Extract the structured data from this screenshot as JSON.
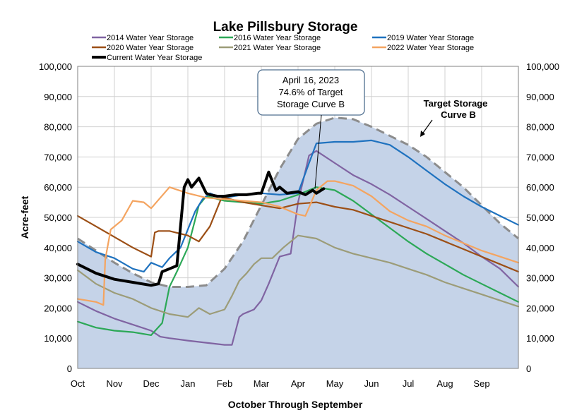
{
  "chart_data": {
    "type": "line",
    "title": "Lake Pillsbury Storage",
    "xlabel": "October Through September",
    "ylabel": "Acre-feet",
    "ylim": [
      0,
      100000
    ],
    "yticks": [
      0,
      10000,
      20000,
      30000,
      40000,
      50000,
      60000,
      70000,
      80000,
      90000,
      100000
    ],
    "ytick_labels": [
      "0",
      "10,000",
      "20,000",
      "30,000",
      "40,000",
      "50,000",
      "60,000",
      "70,000",
      "80,000",
      "90,000",
      "100,000"
    ],
    "x_unit": "month index from Oct 1",
    "xlim": [
      0,
      12
    ],
    "x_tick_labels": [
      "Oct",
      "Nov",
      "Dec",
      "Jan",
      "Feb",
      "Mar",
      "Apr",
      "May",
      "Jun",
      "Jul",
      "Aug",
      "Sep"
    ],
    "grid": true,
    "legend_placement": "top",
    "target_curve": {
      "name": "Target Storage Curve B",
      "label_lines": [
        "Target Storage",
        "Curve B"
      ],
      "color": "#c5d3e8",
      "line_color": "#8c8c8c",
      "x": [
        0,
        0.5,
        1.0,
        1.5,
        2.0,
        2.5,
        3.0,
        3.5,
        4.0,
        4.5,
        5.0,
        5.5,
        6.0,
        6.5,
        7.0,
        7.5,
        8.0,
        8.5,
        9.0,
        9.5,
        10.0,
        10.5,
        11.0,
        11.5,
        12.0
      ],
      "y": [
        43000,
        39000,
        35000,
        31500,
        28500,
        27000,
        27000,
        27500,
        33000,
        42000,
        54000,
        66000,
        76000,
        81000,
        83000,
        82500,
        80000,
        77000,
        74000,
        70000,
        65000,
        60000,
        54000,
        48000,
        43000
      ]
    },
    "series": [
      {
        "name": "2014 Water Year Storage",
        "color": "#8064a2",
        "x": [
          0,
          0.5,
          1.0,
          1.5,
          2.0,
          2.25,
          2.5,
          3.0,
          3.5,
          4.0,
          4.2,
          4.4,
          4.5,
          4.6,
          4.8,
          5.0,
          5.2,
          5.5,
          5.8,
          6.0,
          6.3,
          6.5,
          7.0,
          7.5,
          8.0,
          8.5,
          9.0,
          9.5,
          10.0,
          10.5,
          11.0,
          11.5,
          12.0
        ],
        "values": [
          22000,
          19000,
          16500,
          14500,
          12500,
          10500,
          10000,
          9200,
          8500,
          7800,
          7800,
          17000,
          18000,
          18500,
          19500,
          22500,
          28000,
          37000,
          38000,
          55000,
          70500,
          72000,
          68000,
          64000,
          61000,
          57500,
          53500,
          49500,
          45500,
          41500,
          37000,
          33000,
          27000
        ]
      },
      {
        "name": "2016 Water Year Storage",
        "color": "#2ca857",
        "x": [
          0,
          0.5,
          1.0,
          1.5,
          2.0,
          2.3,
          2.5,
          2.7,
          3.0,
          3.3,
          3.5,
          4.0,
          4.5,
          5.0,
          5.5,
          6.0,
          6.5,
          7.0,
          7.5,
          8.0,
          8.5,
          9.0,
          9.5,
          10.0,
          10.5,
          11.0,
          11.5,
          12.0
        ],
        "values": [
          15500,
          13500,
          12500,
          12000,
          11000,
          15000,
          27000,
          32000,
          40000,
          54000,
          57000,
          55500,
          55000,
          54500,
          55500,
          57500,
          60000,
          59000,
          55500,
          51000,
          46500,
          42000,
          38000,
          34500,
          31000,
          28000,
          25000,
          22000
        ]
      },
      {
        "name": "2019 Water Year Storage",
        "color": "#1f72bf",
        "x": [
          0,
          0.5,
          1.0,
          1.5,
          1.8,
          2.0,
          2.3,
          2.5,
          2.8,
          3.0,
          3.2,
          3.4,
          3.6,
          3.8,
          4.0,
          4.5,
          5.0,
          5.5,
          6.0,
          6.3,
          6.5,
          7.0,
          7.5,
          8.0,
          8.5,
          9.0,
          9.5,
          10.0,
          10.5,
          11.0,
          11.5,
          12.0
        ],
        "values": [
          42000,
          38500,
          36500,
          33000,
          32000,
          35000,
          33500,
          36500,
          40000,
          46000,
          52000,
          56000,
          58000,
          57000,
          56500,
          57500,
          58000,
          57500,
          58000,
          68000,
          74500,
          75000,
          75000,
          75500,
          74000,
          70000,
          65500,
          61000,
          57000,
          53500,
          50500,
          47500
        ]
      },
      {
        "name": "2020 Water Year Storage",
        "color": "#9c4f16",
        "x": [
          0,
          0.5,
          1.0,
          1.5,
          2.0,
          2.1,
          2.2,
          2.5,
          3.0,
          3.3,
          3.6,
          3.9,
          4.0,
          4.5,
          5.0,
          5.5,
          6.0,
          6.5,
          7.0,
          7.5,
          8.0,
          8.5,
          9.0,
          9.5,
          10.0,
          10.5,
          11.0,
          11.5,
          12.0
        ],
        "values": [
          50500,
          47000,
          43500,
          40000,
          37000,
          45000,
          45500,
          45500,
          44000,
          42000,
          47000,
          56000,
          56500,
          55000,
          54000,
          53000,
          54500,
          55000,
          53500,
          52500,
          50500,
          48500,
          46500,
          44500,
          42000,
          39500,
          37000,
          34500,
          32000
        ]
      },
      {
        "name": "2021 Water Year Storage",
        "color": "#9c9c78",
        "x": [
          0,
          0.5,
          1.0,
          1.5,
          2.0,
          2.5,
          3.0,
          3.3,
          3.6,
          4.0,
          4.2,
          4.4,
          4.6,
          4.8,
          5.0,
          5.3,
          5.6,
          6.0,
          6.5,
          7.0,
          7.5,
          8.0,
          8.5,
          9.0,
          9.5,
          10.0,
          10.5,
          11.0,
          11.5,
          12.0
        ],
        "values": [
          32500,
          28000,
          25000,
          23000,
          20000,
          18000,
          17000,
          20000,
          18000,
          19500,
          24000,
          29000,
          31500,
          34500,
          36500,
          36500,
          40000,
          44000,
          43000,
          40000,
          38000,
          36500,
          35000,
          33000,
          31000,
          28500,
          26500,
          24500,
          22500,
          20500
        ]
      },
      {
        "name": "2022 Water Year Storage",
        "color": "#f4a460",
        "x": [
          0,
          0.5,
          0.7,
          0.75,
          0.9,
          1.2,
          1.5,
          1.8,
          2.0,
          2.5,
          3.0,
          3.5,
          4.0,
          4.5,
          5.0,
          5.5,
          6.0,
          6.2,
          6.5,
          6.8,
          7.0,
          7.5,
          8.0,
          8.5,
          9.0,
          9.5,
          10.0,
          10.5,
          11.0,
          11.5,
          12.0
        ],
        "values": [
          23000,
          22000,
          21000,
          36000,
          46000,
          49000,
          55500,
          55000,
          53000,
          60000,
          58000,
          56500,
          56000,
          55500,
          55000,
          53500,
          51000,
          50500,
          59000,
          62000,
          62000,
          60500,
          57000,
          52000,
          49000,
          47000,
          44000,
          41500,
          39000,
          37000,
          35000
        ]
      },
      {
        "name": "Current Water Year Storage",
        "color": "#000000",
        "x": [
          0,
          0.5,
          1.0,
          1.5,
          2.0,
          2.2,
          2.3,
          2.5,
          2.7,
          2.9,
          3.0,
          3.1,
          3.3,
          3.5,
          3.6,
          3.8,
          4.0,
          4.3,
          4.6,
          4.9,
          5.0,
          5.2,
          5.4,
          5.5,
          5.7,
          6.0,
          6.2,
          6.4,
          6.5,
          6.7
        ],
        "values": [
          34500,
          31500,
          29500,
          28500,
          27500,
          28000,
          32000,
          33000,
          34000,
          60000,
          62500,
          60000,
          63000,
          58000,
          57500,
          57000,
          57000,
          57500,
          57500,
          58000,
          58000,
          65000,
          59000,
          60000,
          58000,
          58500,
          57500,
          59000,
          58000,
          59500
        ]
      }
    ],
    "annotation": {
      "lines": [
        "April 16, 2023",
        "74.6% of Target",
        "Storage Curve B"
      ],
      "point_x": 6.5,
      "point_y": 59500
    }
  }
}
